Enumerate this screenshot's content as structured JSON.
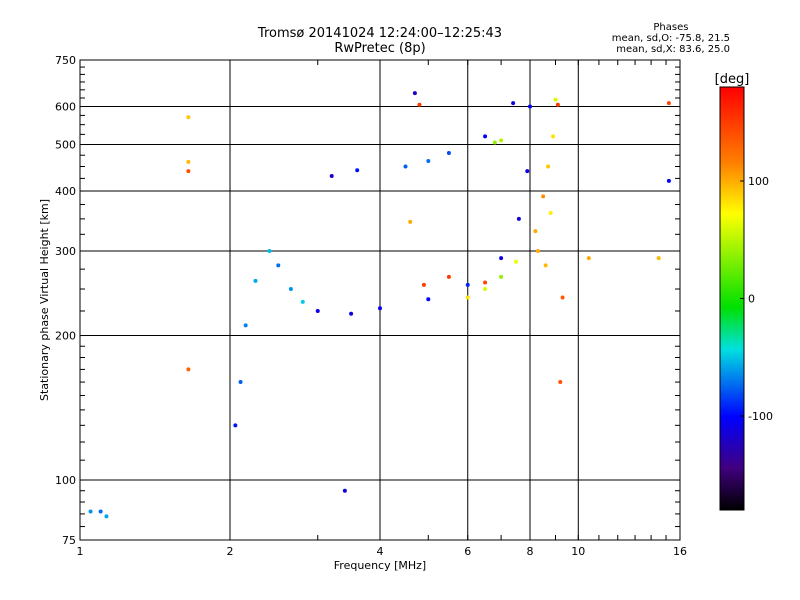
{
  "chart_data": {
    "type": "scatter",
    "title": "Tromsø 20141024 12:24:00–12:25:43",
    "subtitle": "RwPretec (8p)",
    "xlabel": "Frequency [MHz]",
    "ylabel": "Stationary phase Virtual Height [km]",
    "xscale": "log",
    "yscale": "log",
    "xlim": [
      1,
      16
    ],
    "ylim": [
      75,
      750
    ],
    "grid": true,
    "xticks": [
      1,
      2,
      4,
      6,
      8,
      10,
      16
    ],
    "xtick_labels": [
      "1",
      "2",
      "4",
      "6",
      "8",
      "10",
      "16"
    ],
    "yticks": [
      75,
      100,
      200,
      300,
      400,
      500,
      600,
      750
    ],
    "ytick_labels": [
      "75",
      "100",
      "200",
      "300",
      "400",
      "500",
      "600",
      "750"
    ],
    "phases": {
      "heading": "Phases",
      "line_o": "mean, sd,O: -75.8, 21.5",
      "line_x": "mean, sd,X:  83.6, 25.0"
    },
    "colorbar": {
      "label": "[deg]",
      "min": -180,
      "max": 180,
      "ticks": [
        100,
        0,
        -100
      ],
      "tick_labels": [
        "100",
        "0",
        "-100"
      ]
    },
    "series": [
      {
        "points": [
          [
            1.05,
            86,
            -60
          ],
          [
            1.1,
            86,
            -70
          ],
          [
            1.13,
            84,
            -55
          ],
          [
            2.05,
            130,
            -95
          ],
          [
            2.1,
            160,
            -75
          ],
          [
            2.15,
            210,
            -65
          ],
          [
            2.25,
            260,
            -55
          ],
          [
            2.4,
            300,
            -50
          ],
          [
            2.5,
            280,
            -70
          ],
          [
            2.65,
            250,
            -60
          ],
          [
            2.8,
            235,
            -45
          ],
          [
            3.0,
            225,
            -105
          ],
          [
            3.5,
            222,
            -110
          ],
          [
            4.0,
            228,
            -105
          ],
          [
            5.0,
            238,
            -100
          ],
          [
            6.0,
            255,
            -90
          ],
          [
            7.0,
            290,
            -110
          ],
          [
            7.6,
            350,
            -115
          ],
          [
            7.9,
            440,
            -110
          ],
          [
            8.0,
            600,
            -105
          ],
          [
            3.2,
            430,
            -120
          ],
          [
            3.6,
            442,
            -95
          ],
          [
            4.5,
            450,
            -75
          ],
          [
            5.0,
            462,
            -70
          ],
          [
            5.5,
            480,
            -80
          ],
          [
            6.5,
            520,
            -100
          ],
          [
            7.4,
            610,
            -110
          ],
          [
            3.4,
            95,
            -110
          ],
          [
            4.7,
            640,
            -120
          ],
          [
            15.2,
            420,
            -105
          ]
        ]
      },
      {
        "points": [
          [
            6.0,
            240,
            80
          ],
          [
            6.5,
            250,
            60
          ],
          [
            7.0,
            265,
            40
          ],
          [
            7.5,
            285,
            65
          ],
          [
            8.2,
            330,
            100
          ],
          [
            8.5,
            390,
            110
          ],
          [
            8.7,
            450,
            90
          ],
          [
            8.9,
            520,
            80
          ],
          [
            9.0,
            620,
            60
          ],
          [
            8.3,
            300,
            100
          ],
          [
            7.0,
            510,
            50
          ],
          [
            6.8,
            505,
            40
          ],
          [
            8.8,
            360,
            75
          ],
          [
            8.6,
            280,
            95
          ],
          [
            1.65,
            570,
            90
          ],
          [
            1.65,
            460,
            95
          ],
          [
            10.5,
            290,
            100
          ],
          [
            14.5,
            290,
            95
          ],
          [
            4.6,
            345,
            100
          ]
        ]
      },
      {
        "points": [
          [
            1.65,
            440,
            140
          ],
          [
            1.65,
            170,
            130
          ],
          [
            4.8,
            605,
            150
          ],
          [
            9.2,
            160,
            140
          ],
          [
            9.3,
            240,
            135
          ],
          [
            4.9,
            255,
            150
          ],
          [
            6.5,
            258,
            145
          ],
          [
            5.5,
            265,
            150
          ],
          [
            9.1,
            605,
            150
          ],
          [
            15.2,
            610,
            145
          ]
        ]
      }
    ]
  }
}
